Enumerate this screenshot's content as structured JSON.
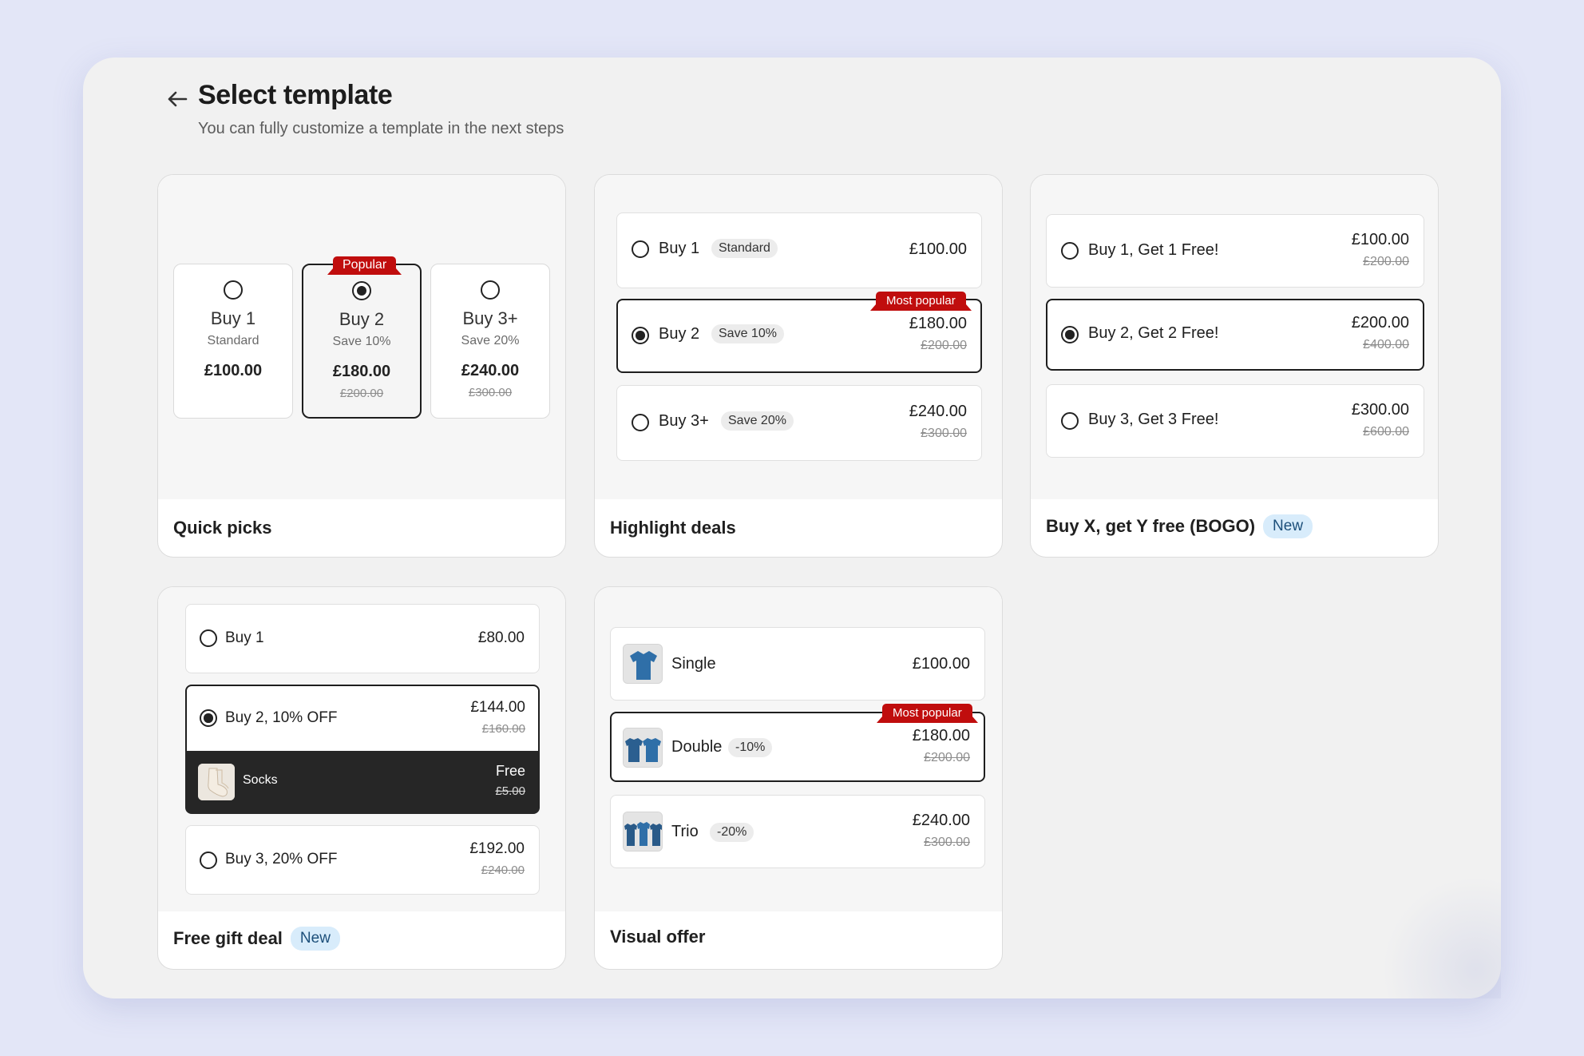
{
  "header": {
    "title": "Select template",
    "subtitle": "You can fully customize a template in the next steps"
  },
  "templates": {
    "quick_picks": {
      "name": "Quick picks",
      "ribbon": "Popular",
      "options": [
        {
          "label": "Buy 1",
          "sub": "Standard",
          "price": "£100.00",
          "old": ""
        },
        {
          "label": "Buy 2",
          "sub": "Save 10%",
          "price": "£180.00",
          "old": "£200.00"
        },
        {
          "label": "Buy 3+",
          "sub": "Save 20%",
          "price": "£240.00",
          "old": "£300.00"
        }
      ]
    },
    "highlight_deals": {
      "name": "Highlight deals",
      "ribbon": "Most popular",
      "options": [
        {
          "label": "Buy 1",
          "chip": "Standard",
          "price": "£100.00",
          "old": ""
        },
        {
          "label": "Buy 2",
          "chip": "Save 10%",
          "price": "£180.00",
          "old": "£200.00"
        },
        {
          "label": "Buy 3+",
          "chip": "Save 20%",
          "price": "£240.00",
          "old": "£300.00"
        }
      ]
    },
    "bogo": {
      "name": "Buy X, get Y free (BOGO)",
      "badge": "New",
      "options": [
        {
          "label": "Buy 1, Get 1 Free!",
          "price": "£100.00",
          "old": "£200.00"
        },
        {
          "label": "Buy 2, Get 2 Free!",
          "price": "£200.00",
          "old": "£400.00"
        },
        {
          "label": "Buy 3, Get 3 Free!",
          "price": "£300.00",
          "old": "£600.00"
        }
      ]
    },
    "free_gift": {
      "name": "Free gift deal",
      "badge": "New",
      "options": [
        {
          "label": "Buy 1",
          "price": "£80.00",
          "old": ""
        },
        {
          "label": "Buy 2, 10% OFF",
          "price": "£144.00",
          "old": "£160.00"
        },
        {
          "label": "Buy 3, 20% OFF",
          "price": "£192.00",
          "old": "£240.00"
        }
      ],
      "gift": {
        "label": "Socks",
        "price": "Free",
        "old": "£5.00"
      }
    },
    "visual_offer": {
      "name": "Visual offer",
      "ribbon": "Most popular",
      "options": [
        {
          "label": "Single",
          "chip": "",
          "price": "£100.00",
          "old": ""
        },
        {
          "label": "Double",
          "chip": "-10%",
          "price": "£180.00",
          "old": "£200.00"
        },
        {
          "label": "Trio",
          "chip": "-20%",
          "price": "£240.00",
          "old": "£300.00"
        }
      ]
    }
  },
  "colors": {
    "background": "#e3e6f7",
    "panel": "#f1f1f1",
    "ribbon": "#c00d0d",
    "selected_border": "#1e1e1e",
    "new_badge": "#d8ecfb",
    "shirt": "#2f6fa8"
  },
  "icons": {
    "back": "arrow-left-icon",
    "radio_empty": "radio-unselected-icon",
    "radio_filled": "radio-selected-icon"
  }
}
